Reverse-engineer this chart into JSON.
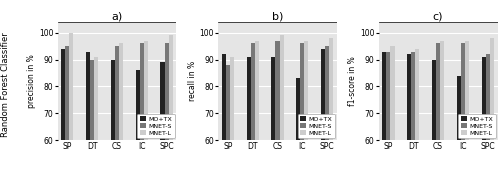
{
  "subplot_titles": [
    "a)",
    "b)",
    "c)"
  ],
  "categories": [
    "SP",
    "DT",
    "CS",
    "IC",
    "SPC"
  ],
  "series_labels": [
    "MO+TX",
    "MNET-S",
    "MNET-L"
  ],
  "series_colors": [
    "#222222",
    "#777777",
    "#cccccc"
  ],
  "ylabel_left": "Random Forest Classifier",
  "ylim": [
    60,
    104
  ],
  "yticks": [
    60,
    70,
    80,
    90,
    100
  ],
  "precision": {
    "ylabel": "precision in %",
    "data": [
      [
        94,
        93,
        90,
        86,
        89
      ],
      [
        95,
        90,
        95,
        96,
        96
      ],
      [
        100,
        91,
        96,
        97,
        99
      ]
    ]
  },
  "recall": {
    "ylabel": "recall in %",
    "data": [
      [
        92,
        91,
        91,
        83,
        94
      ],
      [
        88,
        96,
        97,
        96,
        95
      ],
      [
        91,
        97,
        99,
        97,
        98
      ]
    ]
  },
  "f1score": {
    "ylabel": "f1-score in %",
    "data": [
      [
        93,
        92,
        90,
        84,
        91
      ],
      [
        93,
        93,
        96,
        96,
        92
      ],
      [
        95,
        94,
        97,
        97,
        98
      ]
    ]
  }
}
